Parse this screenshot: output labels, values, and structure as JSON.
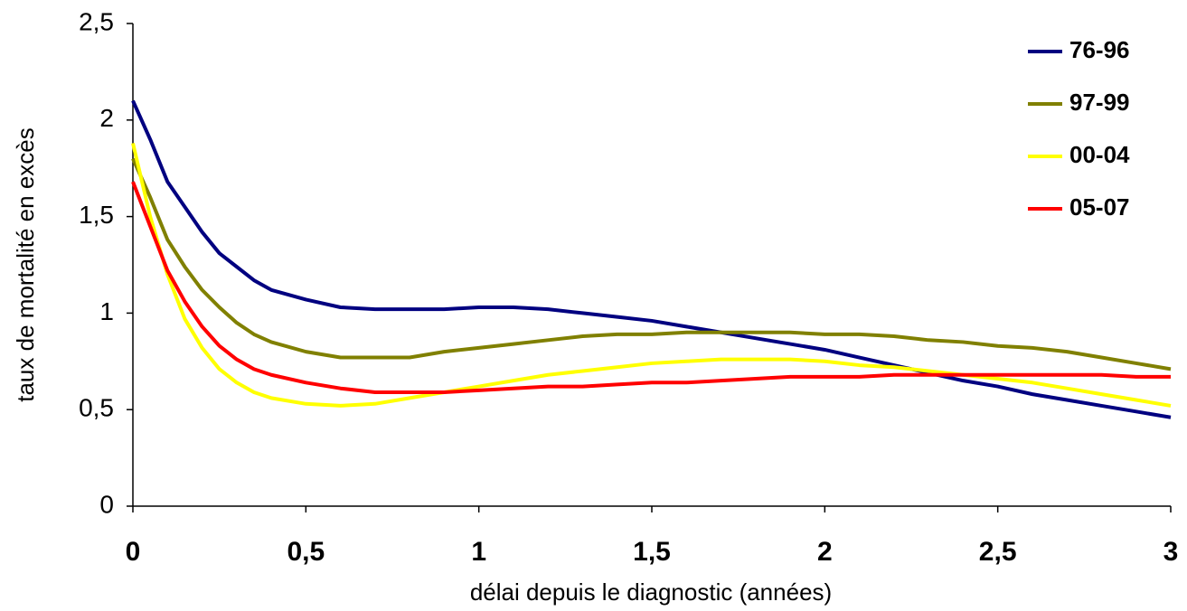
{
  "chart_data": {
    "type": "line",
    "x_label": "délai depuis le diagnostic (années)",
    "y_label": "taux de mortalité en excès",
    "x": [
      0,
      0.05,
      0.1,
      0.15,
      0.2,
      0.25,
      0.3,
      0.35,
      0.4,
      0.5,
      0.6,
      0.7,
      0.8,
      0.9,
      1.0,
      1.1,
      1.2,
      1.3,
      1.4,
      1.5,
      1.6,
      1.7,
      1.8,
      1.9,
      2.0,
      2.1,
      2.2,
      2.3,
      2.4,
      2.5,
      2.6,
      2.7,
      2.8,
      2.9,
      3.0
    ],
    "series": [
      {
        "name": "76-96",
        "color": "#000080",
        "values": [
          2.1,
          1.9,
          1.68,
          1.55,
          1.42,
          1.31,
          1.24,
          1.17,
          1.12,
          1.07,
          1.03,
          1.02,
          1.02,
          1.02,
          1.03,
          1.03,
          1.02,
          1.0,
          0.98,
          0.96,
          0.93,
          0.9,
          0.87,
          0.84,
          0.81,
          0.77,
          0.73,
          0.69,
          0.65,
          0.62,
          0.58,
          0.55,
          0.52,
          0.49,
          0.46
        ]
      },
      {
        "name": "97-99",
        "color": "#808000",
        "values": [
          1.8,
          1.6,
          1.38,
          1.24,
          1.12,
          1.03,
          0.95,
          0.89,
          0.85,
          0.8,
          0.77,
          0.77,
          0.77,
          0.8,
          0.82,
          0.84,
          0.86,
          0.88,
          0.89,
          0.89,
          0.9,
          0.9,
          0.9,
          0.9,
          0.89,
          0.89,
          0.88,
          0.86,
          0.85,
          0.83,
          0.82,
          0.8,
          0.77,
          0.74,
          0.71
        ]
      },
      {
        "name": "00-04",
        "color": "#ffff00",
        "values": [
          1.88,
          1.5,
          1.2,
          0.97,
          0.82,
          0.71,
          0.64,
          0.59,
          0.56,
          0.53,
          0.52,
          0.53,
          0.56,
          0.59,
          0.62,
          0.65,
          0.68,
          0.7,
          0.72,
          0.74,
          0.75,
          0.76,
          0.76,
          0.76,
          0.75,
          0.73,
          0.72,
          0.7,
          0.68,
          0.66,
          0.64,
          0.61,
          0.58,
          0.55,
          0.52
        ]
      },
      {
        "name": "05-07",
        "color": "#ff0000",
        "values": [
          1.68,
          1.45,
          1.22,
          1.06,
          0.93,
          0.83,
          0.76,
          0.71,
          0.68,
          0.64,
          0.61,
          0.59,
          0.59,
          0.59,
          0.6,
          0.61,
          0.62,
          0.62,
          0.63,
          0.64,
          0.64,
          0.65,
          0.66,
          0.67,
          0.67,
          0.67,
          0.68,
          0.68,
          0.68,
          0.68,
          0.68,
          0.68,
          0.68,
          0.67,
          0.67
        ]
      }
    ],
    "xlim": [
      0,
      3
    ],
    "xticks": [
      0,
      {
        "value": 0.5,
        "label": "0,5"
      },
      1,
      {
        "value": 1.5,
        "label": "1,5"
      },
      2,
      {
        "value": 2.5,
        "label": "2,5"
      },
      3
    ],
    "ylim": [
      0,
      2.5
    ],
    "yticks": [
      0,
      {
        "value": 0.5,
        "label": "0,5"
      },
      1,
      {
        "value": 1.5,
        "label": "1,5"
      },
      2,
      {
        "value": 2.5,
        "label": "2,5"
      }
    ],
    "grid": false,
    "legend": "top-right"
  }
}
